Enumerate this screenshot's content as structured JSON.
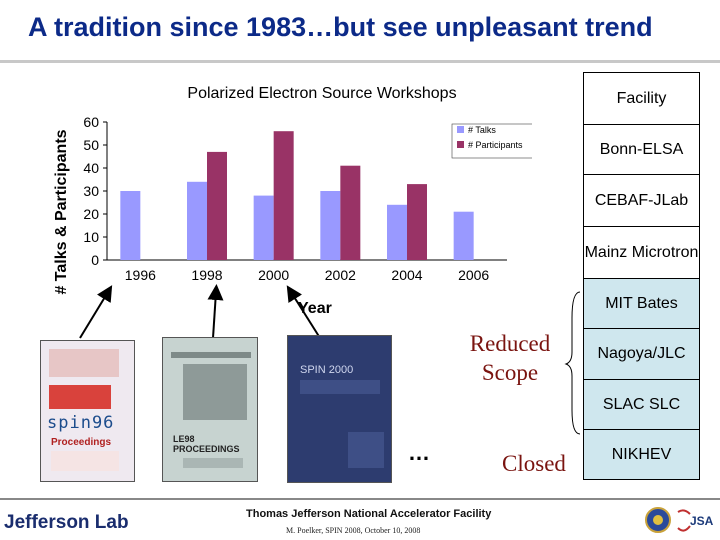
{
  "slide": {
    "title": "A tradition since 1983…but see unpleasant trend"
  },
  "chart_data": {
    "type": "bar",
    "title": "Polarized Electron Source Workshops",
    "xlabel": "Year",
    "ylabel": "# Talks & Participants",
    "categories": [
      "1996",
      "1998",
      "2000",
      "2002",
      "2004",
      "2006"
    ],
    "ylim": [
      0,
      60
    ],
    "yticks": [
      0,
      10,
      20,
      30,
      40,
      50,
      60
    ],
    "series": [
      {
        "name": "# Talks",
        "values": [
          30,
          34,
          28,
          30,
          24,
          21
        ],
        "color": "#9999ff"
      },
      {
        "name": "# Participants",
        "values": [
          null,
          47,
          56,
          41,
          33,
          null
        ],
        "color": "#993366"
      }
    ],
    "legend": "right",
    "grid": false
  },
  "facility_table": {
    "header": "Facility",
    "rows": [
      "Bonn-ELSA",
      "CEBAF-JLab",
      "Mainz Microtron",
      "MIT Bates",
      "Nagoya/JLC",
      "SLAC SLC",
      "NIKHEV"
    ]
  },
  "annotations": {
    "reduced_scope": "Reduced Scope",
    "closed": "Closed",
    "ellipsis": "…"
  },
  "covers": {
    "spin96": "spin96",
    "spin96_sub": "Proceedings",
    "le98": "LE98 PROCEEDINGS",
    "spin2000": "SPIN 2000"
  },
  "footer": {
    "logo": "Jefferson Lab",
    "lab": "Thomas Jefferson National Accelerator Facility",
    "credit": "M. Poelker, SPIN 2008, October 10, 2008",
    "jsa": "JSA"
  },
  "colors": {
    "title": "#0c2a88",
    "talks": "#9999ff",
    "participants": "#993366",
    "table_blue": "#cfe7ee",
    "annotation": "#7a1410"
  }
}
